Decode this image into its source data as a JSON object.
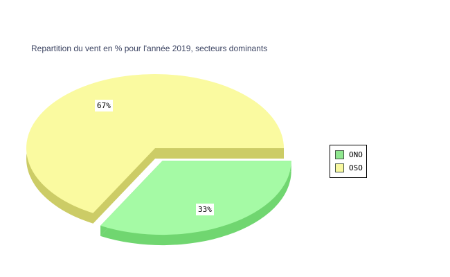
{
  "chart_data": {
    "type": "pie",
    "title": "Repartition du vent en % pour l'année 2019, secteurs dominants",
    "unit": "%",
    "effect_3d": true,
    "exploded": true,
    "start_angle_deg": 0,
    "direction": "ccw",
    "legend_position": "right",
    "background_color": "#ffffff",
    "title_color": "#3C4462",
    "slices": [
      {
        "name": "OSO",
        "value": 67,
        "label": "67%",
        "color_top": "#FAFAA0",
        "color_side": "#CCCC66",
        "explode": 0
      },
      {
        "name": "ONO",
        "value": 33,
        "label": "33%",
        "color_top": "#A5FAA5",
        "color_side": "#70D670",
        "explode": 21
      }
    ]
  },
  "legend": {
    "items": [
      {
        "label": "ONO",
        "color": "#8FE78F"
      },
      {
        "label": "OSO",
        "color": "#F8F8A0"
      }
    ]
  }
}
